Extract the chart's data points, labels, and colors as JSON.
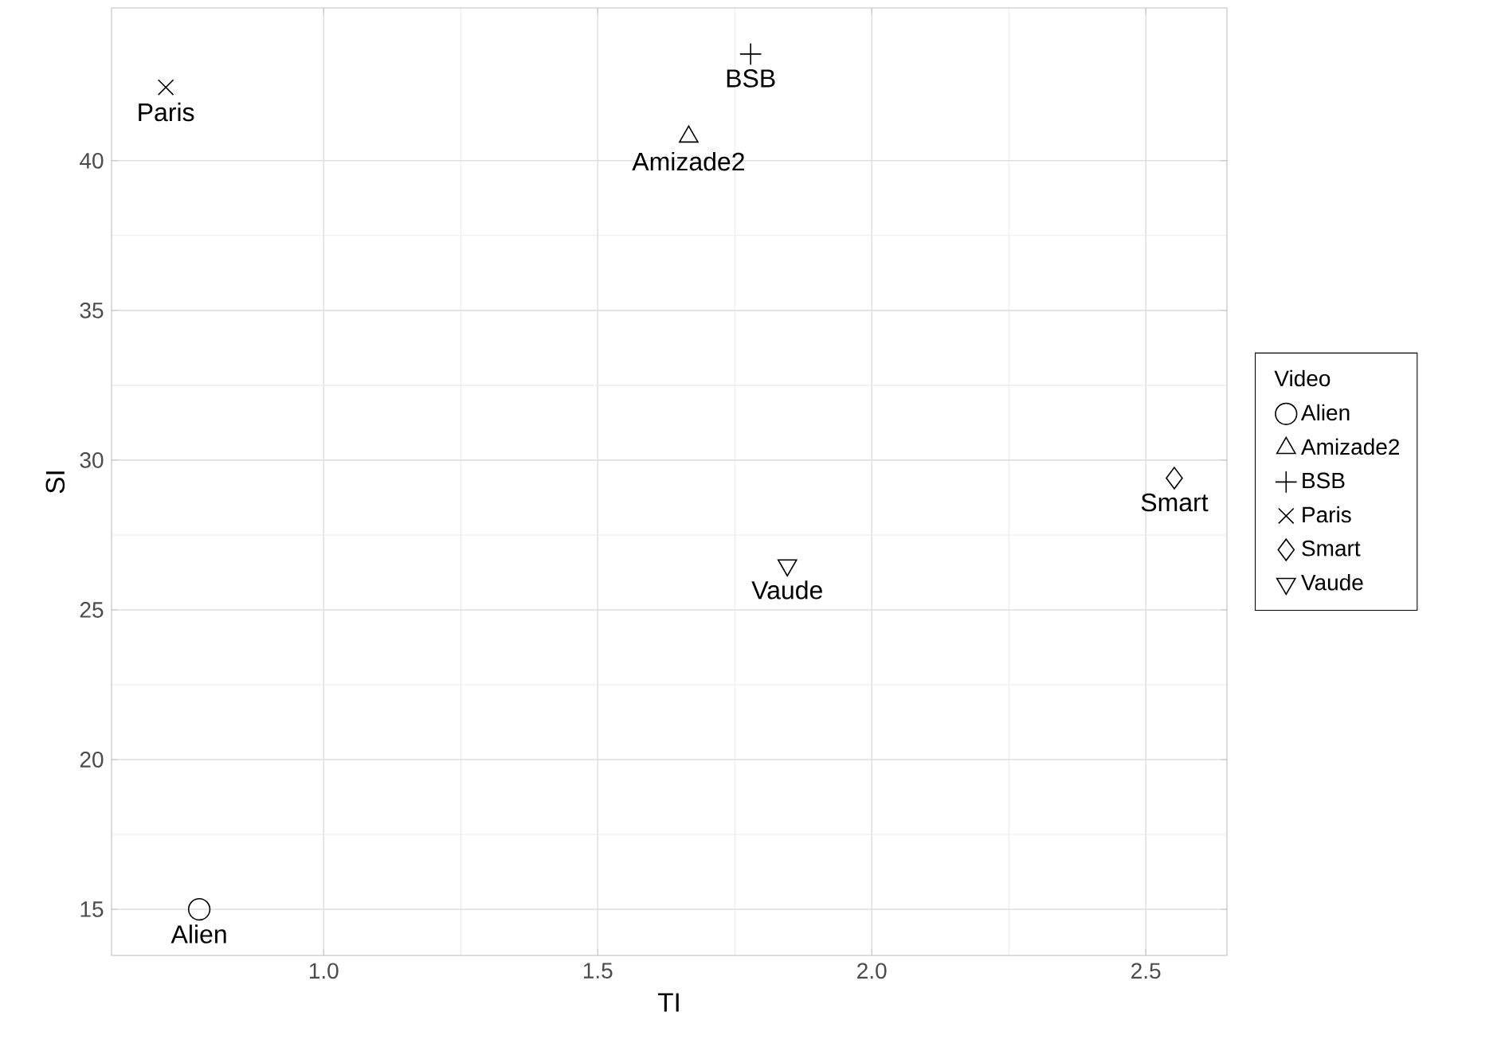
{
  "chart_data": {
    "type": "scatter",
    "xlabel": "TI",
    "ylabel": "SI",
    "legend_title": "Video",
    "legend": "right",
    "grid": true,
    "xlim": [
      0.613,
      2.648
    ],
    "ylim": [
      13.46,
      45.1
    ],
    "xticks": [
      {
        "value": 1.0,
        "label": "1.0"
      },
      {
        "value": 1.5,
        "label": "1.5"
      },
      {
        "value": 2.0,
        "label": "2.0"
      },
      {
        "value": 2.5,
        "label": "2.5"
      }
    ],
    "yticks": [
      15,
      20,
      25,
      30,
      35,
      40
    ],
    "series": [
      {
        "name": "Alien",
        "color": "#000000",
        "marker": "circle",
        "x": [
          0.773
        ],
        "values": [
          15.0
        ]
      },
      {
        "name": "Amizade2",
        "color": "#000000",
        "marker": "triangle",
        "x": [
          1.666
        ],
        "values": [
          40.8
        ]
      },
      {
        "name": "BSB",
        "color": "#000000",
        "marker": "plus",
        "x": [
          1.779
        ],
        "values": [
          43.56
        ]
      },
      {
        "name": "Paris",
        "color": "#000000",
        "marker": "cross",
        "x": [
          0.712
        ],
        "values": [
          42.45
        ]
      },
      {
        "name": "Smart",
        "color": "#000000",
        "marker": "diamond",
        "x": [
          2.552
        ],
        "values": [
          29.4
        ]
      },
      {
        "name": "Vaude",
        "color": "#000000",
        "marker": "triangle_down",
        "x": [
          1.846
        ],
        "values": [
          26.49
        ]
      }
    ],
    "annotations": [
      {
        "text": "Alien",
        "x": 0.773,
        "y": 15.0
      },
      {
        "text": "Amizade2",
        "x": 1.666,
        "y": 40.8
      },
      {
        "text": "BSB",
        "x": 1.779,
        "y": 43.56
      },
      {
        "text": "Paris",
        "x": 0.712,
        "y": 42.45
      },
      {
        "text": "Smart",
        "x": 2.552,
        "y": 29.4
      },
      {
        "text": "Vaude",
        "x": 1.846,
        "y": 26.49
      }
    ]
  }
}
